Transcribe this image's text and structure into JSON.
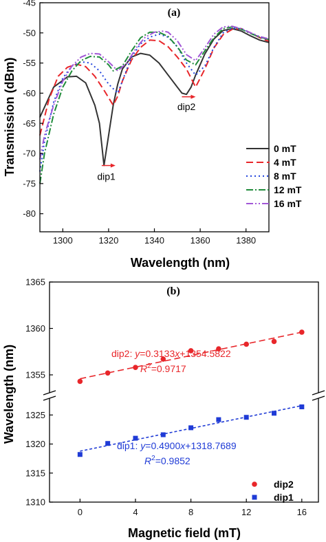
{
  "chart_data": [
    {
      "type": "line",
      "panel_label": "(a)",
      "xlabel": "Wavelength (nm)",
      "ylabel": "Transmission (dBm)",
      "xlim": [
        1290,
        1390
      ],
      "ylim": [
        -83,
        -45
      ],
      "xticks": [
        "1300",
        "1320",
        "1340",
        "1360",
        "1380"
      ],
      "yticks": [
        "-45",
        "-50",
        "-55",
        "-60",
        "-65",
        "-70",
        "-75",
        "-80"
      ],
      "legend_position": "bottom-right",
      "series": [
        {
          "name": "0  mT",
          "color": "#333333",
          "dash": "solid",
          "x": [
            1290,
            1296,
            1302,
            1306,
            1310,
            1314,
            1316,
            1318,
            1320,
            1322,
            1324,
            1326,
            1330,
            1334,
            1338,
            1342,
            1346,
            1350,
            1352,
            1354,
            1356,
            1358,
            1362,
            1366,
            1370,
            1374,
            1378,
            1382,
            1386,
            1390
          ],
          "y": [
            -64,
            -59,
            -57.3,
            -57.2,
            -58.3,
            -62,
            -65,
            -72,
            -67,
            -62,
            -58.5,
            -56,
            -54,
            -53.4,
            -53.7,
            -55,
            -57,
            -59,
            -60,
            -60.2,
            -59,
            -57,
            -53.5,
            -51,
            -49.6,
            -49.3,
            -49.7,
            -50.5,
            -51.2,
            -51.6
          ]
        },
        {
          "name": "4  mT",
          "color": "#e8262a",
          "dash": "10,5",
          "x": [
            1290,
            1294,
            1298,
            1302,
            1306,
            1310,
            1314,
            1318,
            1322,
            1324,
            1326,
            1330,
            1334,
            1338,
            1342,
            1346,
            1350,
            1354,
            1356,
            1358,
            1362,
            1366,
            1370,
            1374,
            1378,
            1382,
            1386,
            1390
          ],
          "y": [
            -67,
            -61,
            -57.2,
            -55.7,
            -55.2,
            -55.6,
            -57.2,
            -59.5,
            -62,
            -60.5,
            -58,
            -54.5,
            -52.4,
            -51.2,
            -51.3,
            -52.3,
            -54,
            -56,
            -57.5,
            -59,
            -56,
            -52.5,
            -50.3,
            -49.4,
            -49.3,
            -50,
            -50.8,
            -51.4
          ]
        },
        {
          "name": "8  mT",
          "color": "#2244dd",
          "dash": "2,4",
          "x": [
            1290,
            1292,
            1296,
            1300,
            1304,
            1308,
            1312,
            1316,
            1320,
            1324,
            1326,
            1330,
            1334,
            1338,
            1342,
            1346,
            1350,
            1354,
            1358,
            1362,
            1366,
            1370,
            1374,
            1378,
            1382,
            1386,
            1390
          ],
          "y": [
            -73,
            -68,
            -61.5,
            -57.5,
            -55.5,
            -54.8,
            -55,
            -56.3,
            -58.5,
            -60,
            -58,
            -54,
            -51.8,
            -50.7,
            -50.2,
            -50.7,
            -52.3,
            -55,
            -57,
            -55.5,
            -52.4,
            -50,
            -49.2,
            -49.3,
            -50,
            -50.7,
            -51.2
          ]
        },
        {
          "name": "12 mT",
          "color": "#1f8b3a",
          "dash": "10,3,2,3",
          "x": [
            1290,
            1292,
            1296,
            1300,
            1304,
            1308,
            1312,
            1316,
            1320,
            1322,
            1326,
            1330,
            1334,
            1338,
            1342,
            1346,
            1350,
            1354,
            1358,
            1362,
            1366,
            1370,
            1374,
            1378,
            1382,
            1386,
            1390
          ],
          "y": [
            -75,
            -70,
            -63.5,
            -59,
            -56.3,
            -54.6,
            -53.9,
            -54,
            -55.3,
            -56.3,
            -55.5,
            -53,
            -50.8,
            -49.9,
            -49.9,
            -50.6,
            -52.3,
            -54.5,
            -55.3,
            -53,
            -50.8,
            -49.3,
            -49,
            -49.4,
            -50.1,
            -50.7,
            -51.1
          ]
        },
        {
          "name": "16 mT",
          "color": "#a157d6",
          "dash": "10,3,2,3,2,3",
          "x": [
            1290,
            1292,
            1296,
            1300,
            1304,
            1308,
            1312,
            1316,
            1320,
            1324,
            1328,
            1332,
            1336,
            1340,
            1344,
            1346,
            1350,
            1354,
            1358,
            1362,
            1366,
            1370,
            1374,
            1378,
            1382,
            1386,
            1390
          ],
          "y": [
            -71,
            -67,
            -62,
            -58,
            -55.5,
            -54,
            -53.4,
            -53.5,
            -54.8,
            -56.3,
            -55,
            -52.5,
            -50.7,
            -49.9,
            -49.7,
            -49.9,
            -51.3,
            -53.6,
            -54.6,
            -52.5,
            -50.2,
            -49,
            -48.9,
            -49.3,
            -50,
            -50.6,
            -51
          ]
        }
      ],
      "annotations": [
        {
          "text": "dip1",
          "x": 1319,
          "y": -74.4,
          "arrow_from": 1317,
          "arrow_to": 1323,
          "arrow_y": -72
        },
        {
          "text": "dip2",
          "x": 1354,
          "y": -62.8,
          "arrow_from": 1352,
          "arrow_to": 1358,
          "arrow_y": -60.6
        }
      ]
    },
    {
      "type": "scatter",
      "panel_label": "(b)",
      "xlabel": "Magnetic field (mT)",
      "ylabel": "Wavelength (nm)",
      "xlim": [
        -2.2,
        17.2
      ],
      "xticks": [
        0,
        4,
        8,
        12,
        16
      ],
      "y_axis_break": true,
      "upper_ylim": [
        1353,
        1365
      ],
      "upper_yticks": [
        1355,
        1360,
        1365
      ],
      "lower_ylim": [
        1310,
        1328
      ],
      "lower_yticks": [
        1310,
        1315,
        1320,
        1325
      ],
      "legend_position": "bottom-right",
      "series": [
        {
          "name": "dip2",
          "color": "#e8262a",
          "marker": "circle",
          "x": [
            0,
            2,
            4,
            6,
            8,
            10,
            12,
            14,
            16
          ],
          "y": [
            1354.3,
            1355.2,
            1355.8,
            1356.7,
            1357.6,
            1357.8,
            1358.3,
            1358.6,
            1359.6
          ]
        },
        {
          "name": "dip1",
          "color": "#1f3bd6",
          "marker": "square",
          "x": [
            0,
            2,
            4,
            6,
            8,
            10,
            12,
            14,
            16
          ],
          "y": [
            1318.2,
            1320.1,
            1321.0,
            1321.6,
            1322.8,
            1324.2,
            1324.6,
            1325.3,
            1326.4
          ]
        }
      ],
      "fits": [
        {
          "series": "dip2",
          "slope": 0.3133,
          "intercept": 1354.5822,
          "slope_text": "0.3133",
          "intercept_text": "+1354.5822",
          "r2_text": "=0.9717"
        },
        {
          "series": "dip1",
          "slope": 0.49,
          "intercept": 1318.7689,
          "slope_text": "0.4900",
          "intercept_text": "+1318.7689",
          "r2_text": "=0.9852"
        }
      ]
    }
  ],
  "labels": {
    "fit_prefix_dip2": "dip2: ",
    "fit_prefix_dip1": "dip1: ",
    "fit_y": "y",
    "fit_eq": "=",
    "fit_x": "x",
    "r_letter": "R",
    "r_sup": "2"
  }
}
